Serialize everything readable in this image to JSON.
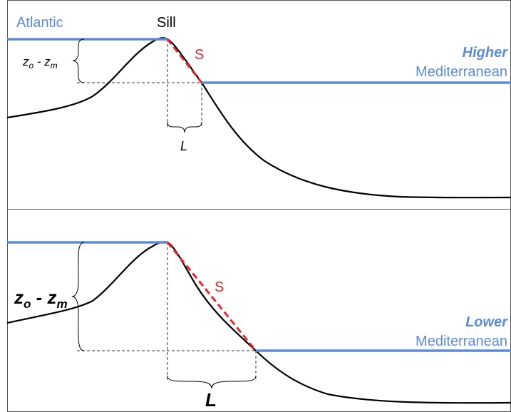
{
  "colors": {
    "water": "#5b8bd9",
    "slope": "#e8262b",
    "profile": "#000000",
    "frame": "#555555",
    "guide": "#333333"
  },
  "top_panel": {
    "atlantic_label": "Atlantic",
    "sill_label": "Sill",
    "slope_label": "S",
    "state_label": "Higher",
    "med_label": "Mediterranean",
    "depth_label": {
      "z1": "z",
      "s1": "o",
      "mid": " - ",
      "z2": "z",
      "s2": "m"
    },
    "length_label": "L"
  },
  "bottom_panel": {
    "slope_label": "S",
    "state_label": "Lower",
    "med_label": "Mediterranean",
    "depth_label": {
      "z1": "z",
      "s1": "o",
      "mid": " - ",
      "z2": "z",
      "s2": "m"
    },
    "length_label": "L"
  }
}
